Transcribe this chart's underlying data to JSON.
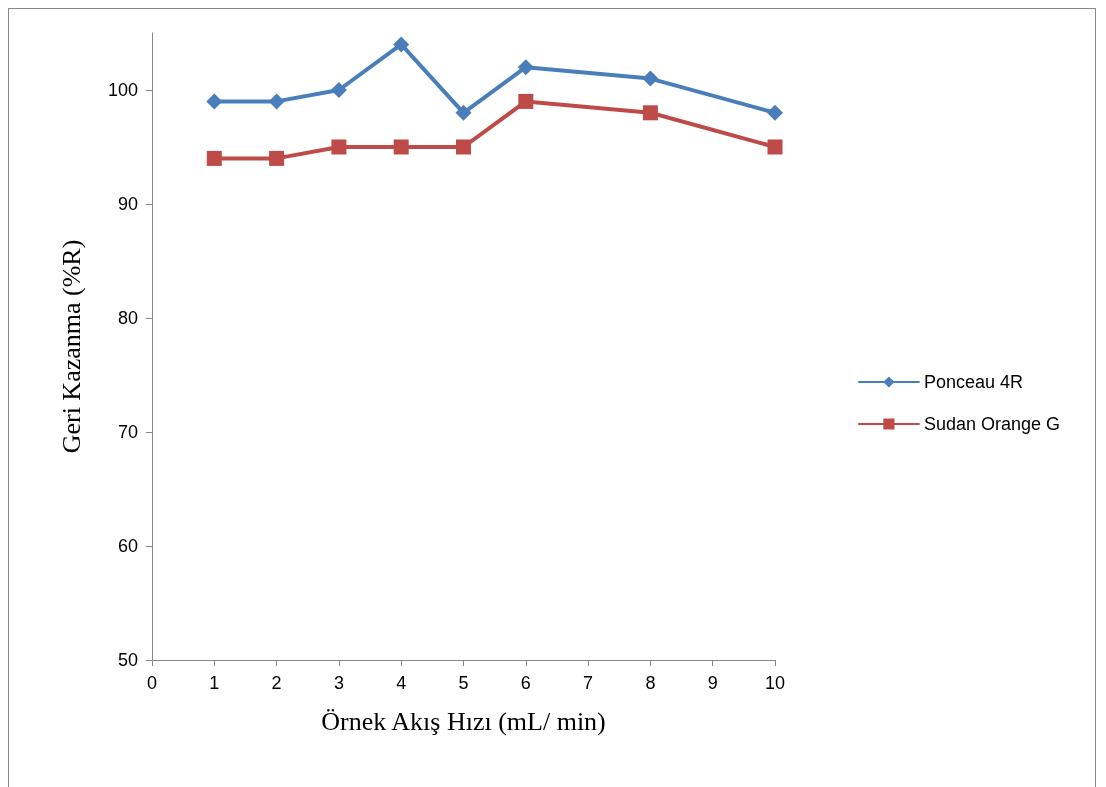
{
  "chart_data": {
    "type": "line",
    "xlabel": "Örnek Akış Hızı (mL/ min)",
    "ylabel": "Geri Kazanma (%R)",
    "x": [
      1,
      2,
      3,
      4,
      5,
      6,
      8,
      10
    ],
    "series": [
      {
        "name": "Ponceau 4R",
        "color": "#4a7ebb",
        "marker": "diamond",
        "values": [
          99,
          99,
          100,
          104,
          98,
          102,
          101,
          98
        ]
      },
      {
        "name": "Sudan Orange G",
        "color": "#be4b48",
        "marker": "square",
        "values": [
          94,
          94,
          95,
          95,
          95,
          99,
          98,
          95
        ]
      }
    ],
    "xlim": [
      0,
      10
    ],
    "xticks": [
      0,
      1,
      2,
      3,
      4,
      5,
      6,
      7,
      8,
      9,
      10
    ],
    "ylim": [
      50,
      105
    ],
    "yticks": [
      50,
      60,
      70,
      80,
      90,
      100
    ],
    "grid": false,
    "legend": "right",
    "line_style": "solid"
  }
}
